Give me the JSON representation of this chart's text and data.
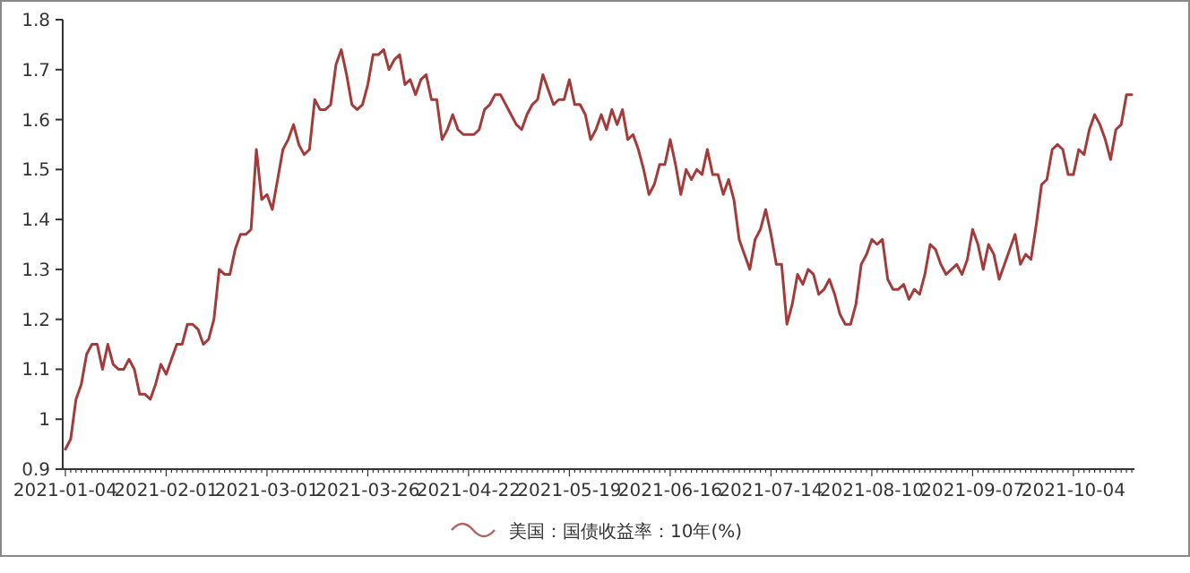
{
  "chart_data": {
    "type": "line",
    "legend": "bottom",
    "categories": [
      "2021-01-04",
      null,
      null,
      null,
      null,
      null,
      null,
      null,
      null,
      null,
      null,
      null,
      null,
      null,
      null,
      null,
      null,
      null,
      null,
      "2021-02-01",
      null,
      null,
      null,
      null,
      null,
      null,
      null,
      null,
      null,
      null,
      null,
      null,
      null,
      null,
      null,
      null,
      null,
      null,
      "2021-03-01",
      null,
      null,
      null,
      null,
      null,
      null,
      null,
      null,
      null,
      null,
      null,
      null,
      null,
      null,
      null,
      null,
      null,
      null,
      "2021-03-26",
      null,
      null,
      null,
      null,
      null,
      null,
      null,
      null,
      null,
      null,
      null,
      null,
      null,
      null,
      null,
      null,
      null,
      null,
      "2021-04-22",
      null,
      null,
      null,
      null,
      null,
      null,
      null,
      null,
      null,
      null,
      null,
      null,
      null,
      null,
      null,
      null,
      null,
      null,
      "2021-05-19",
      null,
      null,
      null,
      null,
      null,
      null,
      null,
      null,
      null,
      null,
      null,
      null,
      null,
      null,
      null,
      null,
      null,
      null,
      "2021-06-16",
      null,
      null,
      null,
      null,
      null,
      null,
      null,
      null,
      null,
      null,
      null,
      null,
      null,
      null,
      null,
      null,
      null,
      null,
      "2021-07-14",
      null,
      null,
      null,
      null,
      null,
      null,
      null,
      null,
      null,
      null,
      null,
      null,
      null,
      null,
      null,
      null,
      null,
      null,
      "2021-08-10",
      null,
      null,
      null,
      null,
      null,
      null,
      null,
      null,
      null,
      null,
      null,
      null,
      null,
      null,
      null,
      null,
      null,
      null,
      "2021-09-07",
      null,
      null,
      null,
      null,
      null,
      null,
      null,
      null,
      null,
      null,
      null,
      null,
      null,
      null,
      null,
      null,
      null,
      null,
      "2021-10-04",
      null,
      null,
      null,
      null,
      null,
      null,
      null,
      null,
      null,
      null,
      null
    ],
    "ylim": [
      0.9,
      1.8
    ],
    "yticks": [
      0.9,
      1,
      1.1,
      1.2,
      1.3,
      1.4,
      1.5,
      1.6,
      1.7,
      1.8
    ],
    "series": [
      {
        "name": "美国：国债收益率：10年(%)",
        "color": "#a33b3b",
        "values": [
          0.94,
          0.96,
          1.04,
          1.07,
          1.13,
          1.15,
          1.15,
          1.1,
          1.15,
          1.11,
          1.1,
          1.1,
          1.12,
          1.1,
          1.05,
          1.05,
          1.04,
          1.07,
          1.11,
          1.09,
          1.12,
          1.15,
          1.15,
          1.19,
          1.19,
          1.18,
          1.15,
          1.16,
          1.2,
          1.3,
          1.29,
          1.29,
          1.34,
          1.37,
          1.37,
          1.38,
          1.54,
          1.44,
          1.45,
          1.42,
          1.48,
          1.54,
          1.56,
          1.59,
          1.55,
          1.53,
          1.54,
          1.64,
          1.62,
          1.62,
          1.63,
          1.71,
          1.74,
          1.69,
          1.63,
          1.62,
          1.63,
          1.67,
          1.73,
          1.73,
          1.74,
          1.7,
          1.72,
          1.73,
          1.67,
          1.68,
          1.65,
          1.68,
          1.69,
          1.64,
          1.64,
          1.56,
          1.58,
          1.61,
          1.58,
          1.57,
          1.57,
          1.57,
          1.58,
          1.62,
          1.63,
          1.65,
          1.65,
          1.63,
          1.61,
          1.59,
          1.58,
          1.61,
          1.63,
          1.64,
          1.69,
          1.66,
          1.63,
          1.64,
          1.64,
          1.68,
          1.63,
          1.63,
          1.61,
          1.56,
          1.58,
          1.61,
          1.58,
          1.62,
          1.59,
          1.62,
          1.56,
          1.57,
          1.54,
          1.5,
          1.45,
          1.47,
          1.51,
          1.51,
          1.56,
          1.51,
          1.45,
          1.5,
          1.48,
          1.5,
          1.49,
          1.54,
          1.49,
          1.49,
          1.45,
          1.48,
          1.44,
          1.36,
          1.33,
          1.3,
          1.36,
          1.38,
          1.42,
          1.37,
          1.31,
          1.31,
          1.19,
          1.23,
          1.29,
          1.27,
          1.3,
          1.29,
          1.25,
          1.26,
          1.28,
          1.25,
          1.21,
          1.19,
          1.19,
          1.23,
          1.31,
          1.33,
          1.36,
          1.35,
          1.36,
          1.28,
          1.26,
          1.26,
          1.27,
          1.24,
          1.26,
          1.25,
          1.29,
          1.35,
          1.34,
          1.31,
          1.29,
          1.3,
          1.31,
          1.29,
          1.32,
          1.38,
          1.35,
          1.3,
          1.35,
          1.33,
          1.28,
          1.31,
          1.34,
          1.37,
          1.31,
          1.33,
          1.32,
          1.39,
          1.47,
          1.48,
          1.54,
          1.55,
          1.54,
          1.49,
          1.49,
          1.54,
          1.53,
          1.58,
          1.61,
          1.59,
          1.56,
          1.52,
          1.58,
          1.59,
          1.65,
          1.65
        ]
      }
    ]
  }
}
